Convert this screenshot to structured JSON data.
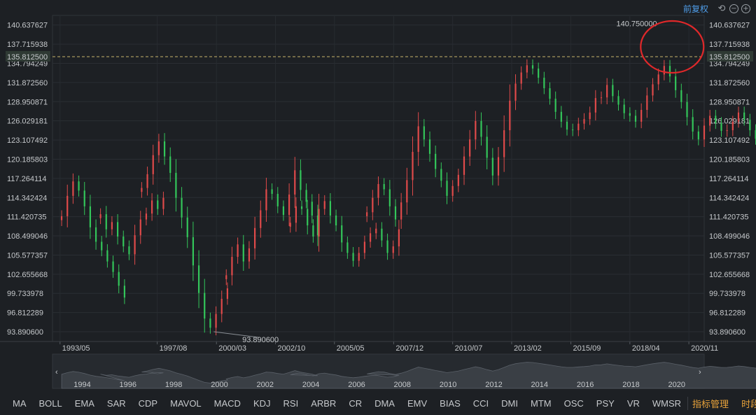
{
  "toolbar": {
    "restore_label": "前复权",
    "undo_icon": "undo-icon",
    "zoom_out_icon": "zoom-out-icon",
    "zoom_in_icon": "zoom-in-icon"
  },
  "chart_data": {
    "type": "candlestick",
    "ylim": [
      92.4,
      142.1
    ],
    "y_ticks": [
      "140.637627",
      "137.715938",
      "134.794249",
      "131.872560",
      "128.950871",
      "126.029181",
      "123.107492",
      "120.185803",
      "117.264114",
      "114.342424",
      "111.420735",
      "108.499046",
      "105.577357",
      "102.655668",
      "99.733978",
      "96.812289",
      "93.890600"
    ],
    "y_tick_values": [
      140.637627,
      137.715938,
      134.794249,
      131.87256,
      128.950871,
      126.029181,
      123.107492,
      120.185803,
      117.264114,
      114.342424,
      111.420735,
      108.499046,
      105.577357,
      102.655668,
      99.733978,
      96.812289,
      93.8906
    ],
    "x_labels": [
      "1993/05",
      "1997/08",
      "2000/03",
      "2002/10",
      "2005/05",
      "2007/12",
      "2010/07",
      "2013/02",
      "2015/09",
      "2018/04",
      "2020/11"
    ],
    "current_price": "135.812500",
    "current_value": 135.8125,
    "max_label": "140.750000",
    "max_value": 140.75,
    "min_label": "93.890600",
    "min_value": 93.8906,
    "up_color": "#e04a4a",
    "down_color": "#33c65a",
    "series": [
      {
        "x": 1993.4,
        "values": [
          111.5,
          114.6,
          116.8,
          115.4,
          113.0,
          109.8,
          107.6,
          106.3,
          104.6,
          103.0,
          100.9,
          99.1
        ]
      },
      {
        "x": 1995.1,
        "values": [
          111.8,
          109.5,
          110.6,
          108.4,
          106.9,
          105.7,
          108.6,
          111.0,
          111.9,
          113.9,
          112.6,
          114.3
        ]
      },
      {
        "x": 1996.9,
        "values": [
          115.8,
          117.9,
          120.8,
          122.9,
          120.6,
          118.1,
          114.3,
          111.3,
          108.3,
          104.0,
          99.8,
          95.9,
          94.5,
          96.6,
          98.9,
          100.5
        ]
      },
      {
        "x": 2000.6,
        "values": [
          102.5,
          105.3,
          107.2,
          104.6,
          106.6,
          109.7,
          112.4,
          115.6,
          114.9,
          113.0,
          111.7,
          114.8,
          118.5,
          115.5,
          113.7,
          111.6,
          108.6
        ]
      },
      {
        "x": 2003.4,
        "values": [
          110.5,
          113.0,
          112.6,
          110.1,
          108.4,
          112.6,
          113.8,
          111.6,
          110.1,
          107.5,
          105.9,
          104.7,
          105.9,
          107.6,
          108.9,
          109.6,
          107.8,
          105.9,
          106.9,
          109.5
        ]
      },
      {
        "x": 2006.75,
        "values": [
          112.1,
          114.3,
          116.4,
          115.6,
          113.0,
          111.0,
          113.6,
          117.0,
          121.3,
          125.2,
          123.2,
          121.0,
          118.7,
          116.9,
          114.6,
          116.1,
          117.8,
          120.6,
          123.2,
          126.0,
          123.6,
          120.4,
          117.7,
          120.5,
          124.6,
          129.1,
          131.7,
          133.4,
          134.5,
          134.0,
          132.6,
          131.0,
          129.4,
          127.4,
          125.9,
          124.7,
          124.6,
          125.6,
          126.3,
          127.3,
          129.5,
          129.6,
          131.5,
          129.8,
          128.5,
          127.2,
          126.8,
          125.9,
          127.7,
          129.9,
          131.6,
          133.1,
          134.4,
          132.8,
          130.7,
          128.9,
          126.6,
          124.4,
          123.2,
          125.3,
          126.8,
          125.7,
          124.5,
          124.6,
          125.9,
          127.3,
          126.2,
          124.6,
          123.3,
          122.4,
          121.0,
          120.4,
          119.3,
          118.6,
          118.8,
          120.8,
          122.4,
          123.8,
          126.8,
          129.5,
          131.3,
          130.7,
          128.8,
          127.8,
          129.4,
          132.2,
          135.8,
          139.1,
          140.5,
          139.8,
          139.4,
          140.6,
          139.5,
          137.9,
          136.8,
          135.8
        ]
      }
    ],
    "navigator_years": [
      "1994",
      "1996",
      "1998",
      "2000",
      "2002",
      "2004",
      "2006",
      "2008",
      "2010",
      "2012",
      "2014",
      "2016",
      "2018",
      "2020"
    ],
    "annotation": "red circle around recent peak"
  },
  "indicators": [
    "MA",
    "BOLL",
    "EMA",
    "SAR",
    "CDP",
    "MAVOL",
    "MACD",
    "KDJ",
    "RSI",
    "ARBR",
    "CR",
    "DMA",
    "EMV",
    "BIAS",
    "CCI",
    "DMI",
    "MTM",
    "OSC",
    "PSY",
    "VR",
    "WMSR"
  ],
  "indicator_manage": "指标管理",
  "period_label": "时段"
}
